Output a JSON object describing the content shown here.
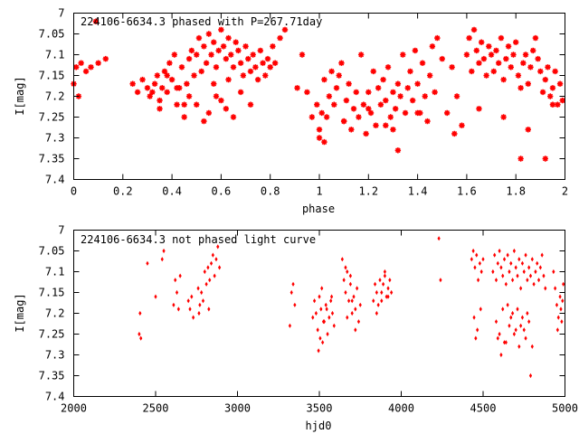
{
  "chart_data": [
    {
      "type": "scatter",
      "title": "224106-6634.3 phased with P=267.71day",
      "xlabel": "phase",
      "ylabel": "I[mag]",
      "xlim": [
        0,
        2
      ],
      "ylim": [
        7.4,
        7.0
      ],
      "y_inverted": true,
      "xticks": [
        "0",
        "0.2",
        "0.4",
        "0.6",
        "0.8",
        "1",
        "1.2",
        "1.4",
        "1.6",
        "1.8",
        "2"
      ],
      "yticks": [
        "7",
        "7.05",
        "7.1",
        "7.15",
        "7.2",
        "7.25",
        "7.3",
        "7.35",
        "7.4"
      ],
      "marker": "asterisk",
      "color": "#ff0000",
      "series": [
        {
          "x": [
            0.01,
            0.03,
            0.05,
            0.07,
            0.0,
            0.02,
            0.09,
            0.1,
            0.13,
            0.24,
            0.26,
            0.28,
            0.3,
            0.31,
            0.32,
            0.33,
            0.34,
            0.35,
            0.36,
            0.37,
            0.38,
            0.39,
            0.4,
            0.41,
            0.42,
            0.43,
            0.44,
            0.45,
            0.46,
            0.47,
            0.48,
            0.49,
            0.5,
            0.51,
            0.52,
            0.53,
            0.54,
            0.55,
            0.56,
            0.57,
            0.58,
            0.59,
            0.6,
            0.61,
            0.62,
            0.63,
            0.64,
            0.65,
            0.66,
            0.67,
            0.68,
            0.69,
            0.7,
            0.71,
            0.72,
            0.73,
            0.74,
            0.75,
            0.76,
            0.77,
            0.78,
            0.79,
            0.8,
            0.81,
            0.82,
            0.84,
            0.86,
            0.45,
            0.5,
            0.55,
            0.6,
            0.65,
            0.42,
            0.58,
            0.62,
            0.68,
            0.72,
            0.53,
            0.57,
            0.63,
            0.38,
            0.47,
            0.35,
            0.91,
            0.93,
            0.95,
            0.97,
            0.99,
            1.0,
            1.01,
            1.02,
            1.03,
            1.04,
            1.05,
            1.06,
            1.07,
            1.08,
            1.09,
            1.1,
            1.11,
            1.12,
            1.13,
            1.14,
            1.15,
            1.16,
            1.17,
            1.18,
            1.19,
            1.2,
            1.21,
            1.22,
            1.23,
            1.24,
            1.25,
            1.26,
            1.27,
            1.28,
            1.29,
            1.3,
            1.31,
            1.32,
            1.33,
            1.34,
            1.35,
            1.36,
            1.37,
            1.38,
            1.39,
            1.4,
            1.41,
            1.42,
            1.43,
            1.44,
            1.45,
            1.46,
            1.47,
            1.48,
            1.5,
            1.52,
            1.54,
            1.56,
            1.58,
            1.6,
            1.61,
            1.62,
            1.63,
            1.64,
            1.65,
            1.66,
            1.67,
            1.68,
            1.69,
            1.7,
            1.71,
            1.72,
            1.73,
            1.74,
            1.75,
            1.76,
            1.77,
            1.78,
            1.79,
            1.8,
            1.81,
            1.82,
            1.83,
            1.84,
            1.85,
            1.86,
            1.87,
            1.88,
            1.89,
            1.9,
            1.91,
            1.92,
            1.93,
            1.94,
            1.95,
            1.96,
            1.97,
            1.98,
            1.99,
            1.0,
            1.1,
            1.2,
            1.3,
            1.4,
            1.55,
            1.65,
            1.75,
            1.85,
            1.95,
            1.32,
            1.82,
            1.92,
            1.27,
            1.02
          ],
          "y": [
            7.13,
            7.12,
            7.14,
            7.13,
            7.17,
            7.2,
            7.02,
            7.12,
            7.11,
            7.17,
            7.19,
            7.16,
            7.18,
            7.2,
            7.19,
            7.17,
            7.15,
            7.21,
            7.18,
            7.14,
            7.19,
            7.12,
            7.16,
            7.1,
            7.22,
            7.18,
            7.13,
            7.22,
            7.17,
            7.11,
            7.09,
            7.15,
            7.1,
            7.06,
            7.14,
            7.08,
            7.12,
            7.05,
            7.1,
            7.07,
            7.13,
            7.09,
            7.04,
            7.08,
            7.11,
            7.06,
            7.1,
            7.13,
            7.07,
            7.09,
            7.12,
            7.15,
            7.08,
            7.11,
            7.14,
            7.1,
            7.13,
            7.16,
            7.09,
            7.12,
            7.15,
            7.11,
            7.13,
            7.08,
            7.12,
            7.06,
            7.04,
            7.25,
            7.22,
            7.24,
            7.21,
            7.25,
            7.18,
            7.2,
            7.23,
            7.19,
            7.22,
            7.26,
            7.17,
            7.16,
            7.15,
            7.2,
            7.23,
            7.18,
            7.1,
            7.19,
            7.25,
            7.22,
            7.28,
            7.24,
            7.16,
            7.25,
            7.2,
            7.14,
            7.22,
            7.18,
            7.15,
            7.12,
            7.26,
            7.21,
            7.17,
            7.28,
            7.23,
            7.19,
            7.25,
            7.1,
            7.22,
            7.29,
            7.19,
            7.24,
            7.14,
            7.27,
            7.18,
            7.22,
            7.16,
            7.21,
            7.13,
            7.25,
            7.19,
            7.23,
            7.17,
            7.2,
            7.1,
            7.24,
            7.18,
            7.14,
            7.21,
            7.09,
            7.17,
            7.24,
            7.12,
            7.2,
            7.26,
            7.15,
            7.08,
            7.19,
            7.06,
            7.11,
            7.24,
            7.13,
            7.2,
            7.27,
            7.1,
            7.06,
            7.14,
            7.04,
            7.09,
            7.12,
            7.07,
            7.11,
            7.15,
            7.08,
            7.1,
            7.14,
            7.09,
            7.12,
            7.06,
            7.16,
            7.11,
            7.08,
            7.13,
            7.1,
            7.07,
            7.15,
            7.18,
            7.12,
            7.1,
            7.17,
            7.13,
            7.09,
            7.06,
            7.11,
            7.14,
            7.19,
            7.16,
            7.13,
            7.2,
            7.18,
            7.14,
            7.22,
            7.17,
            7.21,
            7.3,
            7.26,
            7.23,
            7.28,
            7.24,
            7.29,
            7.23,
            7.25,
            7.28,
            7.22,
            7.33,
            7.35,
            7.35,
            7.27,
            7.31
          ]
        }
      ]
    },
    {
      "type": "scatter",
      "title": "224106-6634.3 not phased light curve",
      "xlabel": "hjd0",
      "ylabel": "I[mag]",
      "xlim": [
        2000,
        5000
      ],
      "ylim": [
        7.4,
        7.0
      ],
      "y_inverted": true,
      "xticks": [
        "2000",
        "2500",
        "3000",
        "3500",
        "4000",
        "4500",
        "5000"
      ],
      "yticks": [
        "7",
        "7.05",
        "7.1",
        "7.15",
        "7.2",
        "7.25",
        "7.3",
        "7.35",
        "7.4"
      ],
      "marker": "diamond",
      "color": "#ff0000",
      "series": [
        {
          "x": [
            2400,
            2410,
            2405,
            2450,
            2500,
            2540,
            2550,
            2610,
            2620,
            2630,
            2640,
            2650,
            2700,
            2710,
            2720,
            2730,
            2760,
            2770,
            2780,
            2800,
            2810,
            2820,
            2830,
            2840,
            2850,
            2860,
            2870,
            2880,
            2890,
            2765,
            2790,
            2825,
            3320,
            3330,
            3340,
            3350,
            3460,
            3470,
            3480,
            3490,
            3500,
            3510,
            3520,
            3530,
            3540,
            3550,
            3560,
            3570,
            3580,
            3590,
            3495,
            3515,
            3545,
            3575,
            3505,
            3525,
            3640,
            3650,
            3660,
            3670,
            3680,
            3690,
            3700,
            3710,
            3720,
            3730,
            3740,
            3750,
            3660,
            3690,
            3720,
            3670,
            3700,
            3830,
            3840,
            3850,
            3860,
            3870,
            3880,
            3890,
            3900,
            3910,
            3920,
            3930,
            3940,
            3850,
            3880,
            3900,
            3920,
            4230,
            4240,
            4430,
            4440,
            4450,
            4460,
            4470,
            4480,
            4490,
            4500,
            4445,
            4465,
            4485,
            4455,
            4560,
            4570,
            4580,
            4590,
            4600,
            4610,
            4620,
            4630,
            4640,
            4650,
            4660,
            4670,
            4680,
            4690,
            4700,
            4710,
            4720,
            4730,
            4740,
            4750,
            4760,
            4770,
            4780,
            4790,
            4800,
            4810,
            4820,
            4830,
            4840,
            4850,
            4860,
            4870,
            4880,
            4580,
            4600,
            4620,
            4640,
            4660,
            4680,
            4700,
            4720,
            4740,
            4760,
            4780,
            4610,
            4650,
            4690,
            4730,
            4770,
            4630,
            4670,
            4710,
            4750,
            4590,
            4790,
            4800,
            4930,
            4940,
            4950,
            4960,
            4970,
            4980,
            4990,
            4955,
            4975,
            4985
          ],
          "y": [
            7.25,
            7.26,
            7.2,
            7.08,
            7.16,
            7.07,
            7.05,
            7.18,
            7.12,
            7.15,
            7.19,
            7.11,
            7.17,
            7.19,
            7.16,
            7.21,
            7.14,
            7.18,
            7.15,
            7.1,
            7.13,
            7.09,
            7.12,
            7.08,
            7.06,
            7.11,
            7.07,
            7.04,
            7.09,
            7.2,
            7.17,
            7.19,
            7.23,
            7.15,
            7.13,
            7.18,
            7.21,
            7.17,
            7.2,
            7.24,
            7.16,
            7.19,
            7.27,
            7.22,
            7.18,
            7.25,
            7.21,
            7.17,
            7.2,
            7.23,
            7.29,
            7.14,
            7.19,
            7.16,
            7.26,
            7.22,
            7.07,
            7.12,
            7.15,
            7.1,
            7.17,
            7.13,
            7.2,
            7.16,
            7.19,
            7.14,
            7.22,
            7.18,
            7.09,
            7.11,
            7.24,
            7.21,
            7.17,
            7.17,
            7.13,
            7.15,
            7.18,
            7.12,
            7.15,
            7.13,
            7.1,
            7.16,
            7.14,
            7.12,
            7.15,
            7.2,
            7.17,
            7.11,
            7.16,
            7.02,
            7.12,
            7.07,
            7.05,
            7.09,
            7.06,
            7.12,
            7.08,
            7.1,
            7.07,
            7.21,
            7.24,
            7.19,
            7.26,
            7.1,
            7.06,
            7.12,
            7.08,
            7.05,
            7.09,
            7.11,
            7.07,
            7.13,
            7.06,
            7.1,
            7.08,
            7.12,
            7.05,
            7.09,
            7.11,
            7.07,
            7.14,
            7.08,
            7.1,
            7.06,
            7.12,
            7.09,
            7.11,
            7.07,
            7.13,
            7.1,
            7.08,
            7.12,
            7.09,
            7.06,
            7.11,
            7.14,
            7.22,
            7.25,
            7.19,
            7.27,
            7.23,
            7.2,
            7.24,
            7.28,
            7.21,
            7.26,
            7.22,
            7.3,
            7.18,
            7.25,
            7.23,
            7.2,
            7.27,
            7.21,
            7.19,
            7.24,
            7.26,
            7.35,
            7.28,
            7.1,
            7.14,
            7.18,
            7.21,
            7.16,
            7.22,
            7.13,
            7.24,
            7.19,
            7.17
          ]
        }
      ]
    }
  ]
}
